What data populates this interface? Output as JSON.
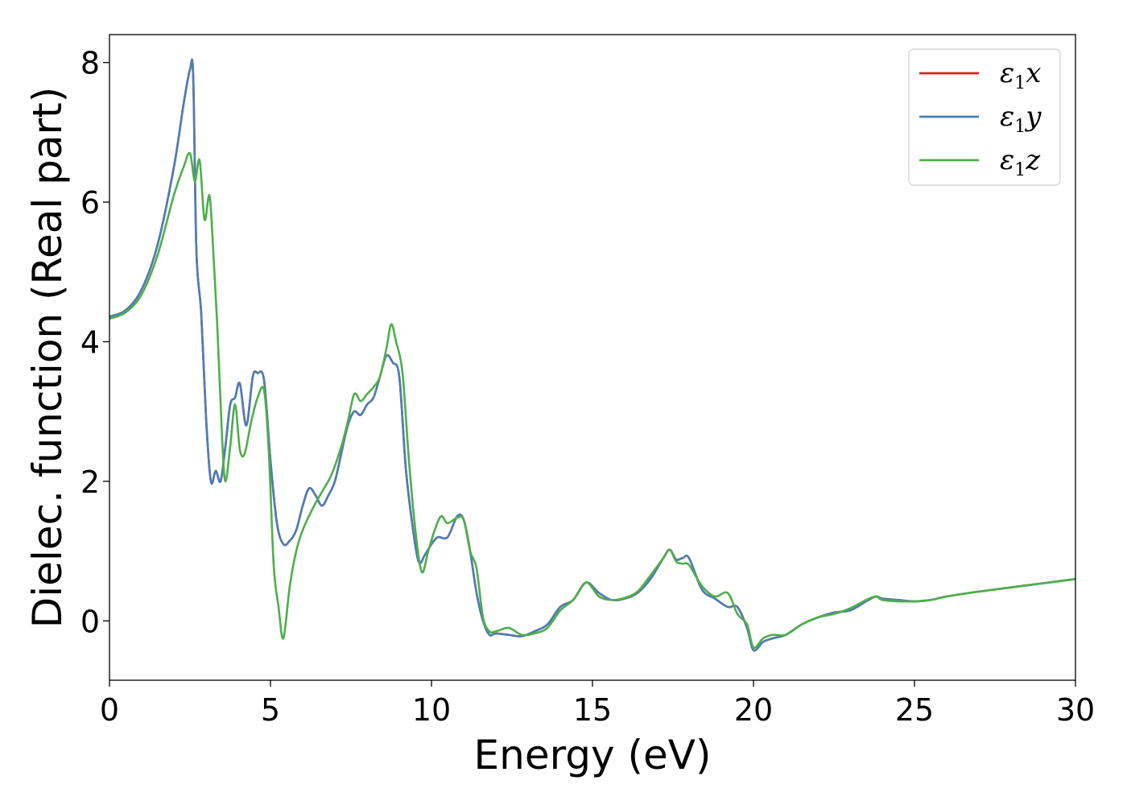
{
  "chart_data": {
    "type": "line",
    "xlabel": "Energy (eV)",
    "ylabel": "Dielec. function (Real part)",
    "xlim": [
      0,
      30
    ],
    "ylim": [
      -0.85,
      8.4
    ],
    "xticks": [
      0,
      5,
      10,
      15,
      20,
      25,
      30
    ],
    "yticks": [
      0,
      2,
      4,
      6,
      8
    ],
    "grid": false,
    "legend_position": "top-right",
    "series": [
      {
        "name": "ε1x",
        "legend_main": "ε",
        "legend_sub": "1",
        "legend_var": "x",
        "color": "#e41a1c",
        "x": [
          0,
          0.5,
          1,
          1.5,
          2,
          2.3,
          2.5,
          2.6,
          2.7,
          2.85,
          3.0,
          3.15,
          3.3,
          3.45,
          3.6,
          3.75,
          3.9,
          4.05,
          4.25,
          4.45,
          4.6,
          4.8,
          5.0,
          5.2,
          5.4,
          5.6,
          5.8,
          6.0,
          6.2,
          6.4,
          6.6,
          6.8,
          7.0,
          7.2,
          7.4,
          7.6,
          7.8,
          8.0,
          8.2,
          8.4,
          8.6,
          8.8,
          9.0,
          9.2,
          9.4,
          9.6,
          9.8,
          10.0,
          10.2,
          10.5,
          10.8,
          11.0,
          11.2,
          11.4,
          11.6,
          11.8,
          12.0,
          12.4,
          12.8,
          13.2,
          13.6,
          14.0,
          14.4,
          14.8,
          15.2,
          15.6,
          16.0,
          16.4,
          16.8,
          17.2,
          17.4,
          17.6,
          17.8,
          18.0,
          18.4,
          18.8,
          19.2,
          19.5,
          19.8,
          20.0,
          20.3,
          20.6,
          21.0,
          21.5,
          22.0,
          22.5,
          23.0,
          23.5,
          23.8,
          24.0,
          24.5,
          25.0,
          25.5,
          26.0,
          27.0,
          28.0,
          29.0,
          30.0
        ],
        "y": [
          4.36,
          4.45,
          4.75,
          5.4,
          6.5,
          7.4,
          7.9,
          7.8,
          5.3,
          4.4,
          2.9,
          2.0,
          2.15,
          2.0,
          2.5,
          3.1,
          3.2,
          3.4,
          2.8,
          3.5,
          3.55,
          3.45,
          2.3,
          1.4,
          1.1,
          1.15,
          1.3,
          1.65,
          1.9,
          1.8,
          1.65,
          1.8,
          2.0,
          2.4,
          2.8,
          3.0,
          2.95,
          3.1,
          3.2,
          3.5,
          3.8,
          3.7,
          3.5,
          2.2,
          1.4,
          0.85,
          0.95,
          1.1,
          1.2,
          1.2,
          1.5,
          1.45,
          1.0,
          0.4,
          0.0,
          -0.2,
          -0.18,
          -0.2,
          -0.22,
          -0.15,
          -0.05,
          0.2,
          0.3,
          0.55,
          0.4,
          0.3,
          0.32,
          0.4,
          0.6,
          0.9,
          1.02,
          0.88,
          0.9,
          0.9,
          0.45,
          0.32,
          0.2,
          0.2,
          -0.1,
          -0.42,
          -0.3,
          -0.25,
          -0.2,
          -0.05,
          0.05,
          0.12,
          0.15,
          0.28,
          0.35,
          0.32,
          0.3,
          0.28,
          0.3,
          0.35,
          0.42,
          0.48,
          0.54,
          0.6
        ]
      },
      {
        "name": "ε1y",
        "legend_main": "ε",
        "legend_sub": "1",
        "legend_var": "y",
        "color": "#4a7fb5",
        "x": [
          0,
          0.5,
          1,
          1.5,
          2,
          2.3,
          2.5,
          2.6,
          2.7,
          2.85,
          3.0,
          3.15,
          3.3,
          3.45,
          3.6,
          3.75,
          3.9,
          4.05,
          4.25,
          4.45,
          4.6,
          4.8,
          5.0,
          5.2,
          5.4,
          5.6,
          5.8,
          6.0,
          6.2,
          6.4,
          6.6,
          6.8,
          7.0,
          7.2,
          7.4,
          7.6,
          7.8,
          8.0,
          8.2,
          8.4,
          8.6,
          8.8,
          9.0,
          9.2,
          9.4,
          9.6,
          9.8,
          10.0,
          10.2,
          10.5,
          10.8,
          11.0,
          11.2,
          11.4,
          11.6,
          11.8,
          12.0,
          12.4,
          12.8,
          13.2,
          13.6,
          14.0,
          14.4,
          14.8,
          15.2,
          15.6,
          16.0,
          16.4,
          16.8,
          17.2,
          17.4,
          17.6,
          17.8,
          18.0,
          18.4,
          18.8,
          19.2,
          19.5,
          19.8,
          20.0,
          20.3,
          20.6,
          21.0,
          21.5,
          22.0,
          22.5,
          23.0,
          23.5,
          23.8,
          24.0,
          24.5,
          25.0,
          25.5,
          26.0,
          27.0,
          28.0,
          29.0,
          30.0
        ],
        "y": [
          4.36,
          4.45,
          4.75,
          5.4,
          6.5,
          7.4,
          7.9,
          7.8,
          5.3,
          4.4,
          2.9,
          2.0,
          2.15,
          2.0,
          2.5,
          3.1,
          3.2,
          3.4,
          2.8,
          3.5,
          3.55,
          3.45,
          2.3,
          1.4,
          1.1,
          1.15,
          1.3,
          1.65,
          1.9,
          1.8,
          1.65,
          1.8,
          2.0,
          2.4,
          2.8,
          3.0,
          2.95,
          3.1,
          3.2,
          3.5,
          3.8,
          3.7,
          3.5,
          2.2,
          1.4,
          0.85,
          0.95,
          1.1,
          1.2,
          1.2,
          1.5,
          1.45,
          1.0,
          0.4,
          0.0,
          -0.2,
          -0.18,
          -0.2,
          -0.22,
          -0.15,
          -0.05,
          0.2,
          0.3,
          0.55,
          0.4,
          0.3,
          0.32,
          0.4,
          0.6,
          0.9,
          1.02,
          0.88,
          0.9,
          0.9,
          0.45,
          0.32,
          0.2,
          0.2,
          -0.1,
          -0.42,
          -0.3,
          -0.25,
          -0.2,
          -0.05,
          0.05,
          0.12,
          0.15,
          0.28,
          0.35,
          0.32,
          0.3,
          0.28,
          0.3,
          0.35,
          0.42,
          0.48,
          0.54,
          0.6
        ]
      },
      {
        "name": "ε1z",
        "legend_main": "ε",
        "legend_sub": "1",
        "legend_var": "z",
        "color": "#4daf4a",
        "x": [
          0,
          0.5,
          1,
          1.5,
          2,
          2.3,
          2.5,
          2.65,
          2.8,
          2.95,
          3.1,
          3.2,
          3.35,
          3.5,
          3.6,
          3.75,
          3.9,
          4.05,
          4.2,
          4.4,
          4.6,
          4.8,
          4.95,
          5.1,
          5.25,
          5.4,
          5.6,
          5.8,
          6.0,
          6.3,
          6.6,
          6.9,
          7.2,
          7.4,
          7.6,
          7.8,
          8.0,
          8.2,
          8.4,
          8.6,
          8.75,
          8.9,
          9.1,
          9.3,
          9.5,
          9.7,
          9.9,
          10.1,
          10.3,
          10.5,
          10.8,
          11.0,
          11.2,
          11.4,
          11.6,
          11.8,
          12.0,
          12.4,
          12.8,
          13.2,
          13.6,
          14.0,
          14.4,
          14.8,
          15.2,
          15.6,
          16.0,
          16.4,
          16.8,
          17.2,
          17.4,
          17.6,
          17.8,
          18.0,
          18.4,
          18.8,
          19.2,
          19.5,
          19.8,
          20.0,
          20.3,
          20.6,
          21.0,
          21.5,
          22.0,
          22.5,
          23.0,
          23.5,
          23.8,
          24.0,
          24.5,
          25.0,
          25.5,
          26.0,
          27.0,
          28.0,
          29.0,
          30.0
        ],
        "y": [
          4.33,
          4.42,
          4.68,
          5.25,
          6.1,
          6.5,
          6.7,
          6.3,
          6.6,
          5.75,
          6.1,
          5.5,
          4.2,
          2.6,
          2.0,
          2.5,
          3.1,
          2.45,
          2.4,
          2.85,
          3.2,
          3.3,
          2.4,
          0.8,
          0.2,
          -0.25,
          0.5,
          1.0,
          1.3,
          1.6,
          1.85,
          2.1,
          2.5,
          2.85,
          3.25,
          3.15,
          3.25,
          3.35,
          3.5,
          3.9,
          4.25,
          4.0,
          3.55,
          2.3,
          1.3,
          0.7,
          1.0,
          1.3,
          1.5,
          1.4,
          1.48,
          1.45,
          1.0,
          0.75,
          0.05,
          -0.15,
          -0.15,
          -0.1,
          -0.2,
          -0.18,
          -0.1,
          0.15,
          0.3,
          0.55,
          0.35,
          0.3,
          0.33,
          0.42,
          0.65,
          0.9,
          1.02,
          0.85,
          0.82,
          0.8,
          0.5,
          0.35,
          0.4,
          0.1,
          -0.05,
          -0.38,
          -0.25,
          -0.2,
          -0.2,
          -0.05,
          0.05,
          0.1,
          0.18,
          0.3,
          0.35,
          0.3,
          0.28,
          0.28,
          0.3,
          0.35,
          0.42,
          0.48,
          0.54,
          0.6
        ]
      }
    ]
  }
}
